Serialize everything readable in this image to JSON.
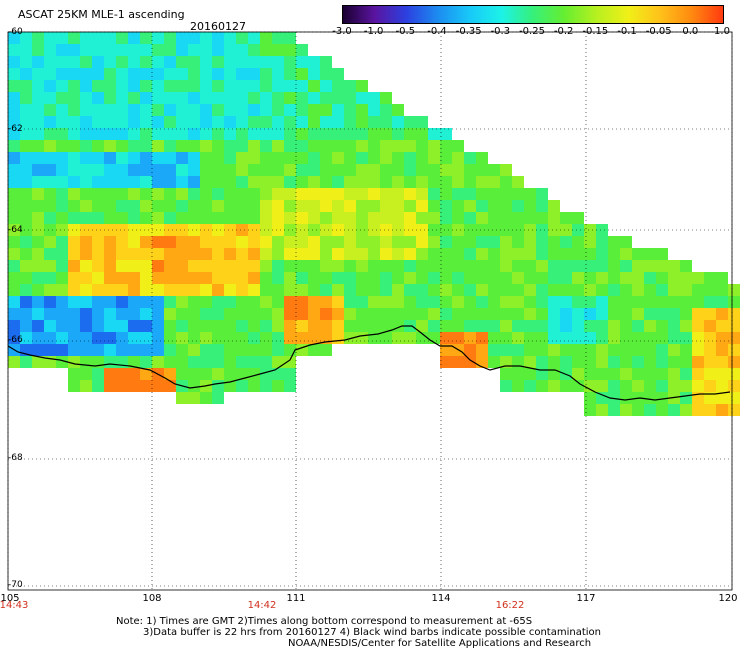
{
  "header": {
    "title": "ASCAT 25KM MLE-1 ascending",
    "date": "20160127"
  },
  "colorbar": {
    "ticks": [
      "-3.0",
      "-1.0",
      "-0.5",
      "-0.4",
      "-0.35",
      "-0.3",
      "-0.25",
      "-0.2",
      "-0.15",
      "-0.1",
      "-0.05",
      "0.0",
      "1.0"
    ],
    "colors": [
      "#1a0030",
      "#5a14a0",
      "#2c40e0",
      "#1c8cf0",
      "#18c8f8",
      "#1cf2e8",
      "#36f07a",
      "#66ee30",
      "#b6f020",
      "#f0f018",
      "#ffc21a",
      "#ff8a10",
      "#ff3a10"
    ]
  },
  "map": {
    "lat_labels": [
      "-60",
      "-62",
      "-64",
      "-66",
      "-68",
      "-70"
    ],
    "lon_labels": [
      "105",
      "108",
      "111",
      "114",
      "117",
      "120"
    ],
    "time_labels": [
      "14:43",
      "14:42",
      "16:22"
    ]
  },
  "notes": {
    "line1": "Note: 1) Times are GMT 2)Times along bottom correspond to measurement at -65S",
    "line2": "3)Data buffer is 22 hrs from 20160127 4) Black wind barbs indicate possible contamination",
    "line3": "NOAA/NESDIS/Center for Satellite Applications and Research"
  }
}
